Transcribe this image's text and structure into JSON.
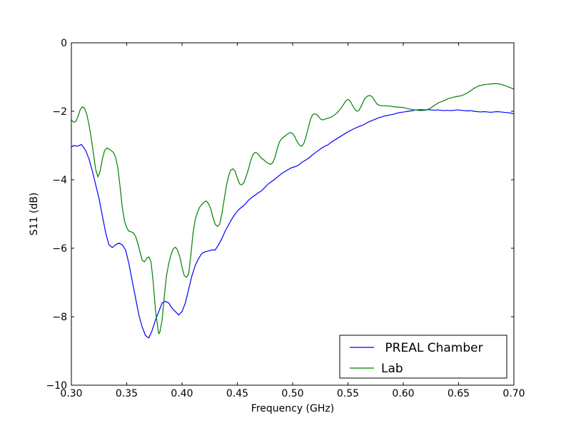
{
  "chart_data": {
    "type": "line",
    "title": "",
    "xlabel": "Frequency (GHz)",
    "ylabel": "S11 (dB)",
    "xlim": [
      0.3,
      0.7
    ],
    "ylim": [
      -10,
      0
    ],
    "xticks": [
      0.3,
      0.35,
      0.4,
      0.45,
      0.5,
      0.55,
      0.6,
      0.65,
      0.7
    ],
    "xtick_labels": [
      "0.30",
      "0.35",
      "0.40",
      "0.45",
      "0.50",
      "0.55",
      "0.60",
      "0.65",
      "0.70"
    ],
    "yticks": [
      0,
      -2,
      -4,
      -6,
      -8,
      -10
    ],
    "ytick_labels": [
      "0",
      "−2",
      "−4",
      "−6",
      "−8",
      "−10"
    ],
    "grid": false,
    "legend_position": "bottom-right",
    "series": [
      {
        "name": " PREAL Chamber",
        "color": "#0000ff",
        "points": [
          [
            0.3,
            -3.05
          ],
          [
            0.302,
            -3.0
          ],
          [
            0.305,
            -3.02
          ],
          [
            0.307,
            -3.0
          ],
          [
            0.309,
            -2.97
          ],
          [
            0.311,
            -3.05
          ],
          [
            0.313,
            -3.15
          ],
          [
            0.316,
            -3.4
          ],
          [
            0.319,
            -3.75
          ],
          [
            0.322,
            -4.15
          ],
          [
            0.325,
            -4.55
          ],
          [
            0.328,
            -5.05
          ],
          [
            0.331,
            -5.55
          ],
          [
            0.334,
            -5.9
          ],
          [
            0.337,
            -5.98
          ],
          [
            0.34,
            -5.9
          ],
          [
            0.343,
            -5.85
          ],
          [
            0.346,
            -5.9
          ],
          [
            0.349,
            -6.05
          ],
          [
            0.352,
            -6.45
          ],
          [
            0.355,
            -6.95
          ],
          [
            0.358,
            -7.45
          ],
          [
            0.361,
            -7.95
          ],
          [
            0.364,
            -8.3
          ],
          [
            0.367,
            -8.55
          ],
          [
            0.37,
            -8.62
          ],
          [
            0.373,
            -8.4
          ],
          [
            0.376,
            -8.1
          ],
          [
            0.379,
            -7.85
          ],
          [
            0.382,
            -7.6
          ],
          [
            0.385,
            -7.55
          ],
          [
            0.388,
            -7.6
          ],
          [
            0.391,
            -7.75
          ],
          [
            0.394,
            -7.85
          ],
          [
            0.397,
            -7.95
          ],
          [
            0.4,
            -7.85
          ],
          [
            0.403,
            -7.6
          ],
          [
            0.406,
            -7.2
          ],
          [
            0.409,
            -6.8
          ],
          [
            0.412,
            -6.5
          ],
          [
            0.415,
            -6.3
          ],
          [
            0.418,
            -6.15
          ],
          [
            0.421,
            -6.1
          ],
          [
            0.424,
            -6.08
          ],
          [
            0.427,
            -6.05
          ],
          [
            0.43,
            -6.05
          ],
          [
            0.433,
            -5.9
          ],
          [
            0.436,
            -5.72
          ],
          [
            0.439,
            -5.5
          ],
          [
            0.442,
            -5.32
          ],
          [
            0.445,
            -5.15
          ],
          [
            0.448,
            -5.0
          ],
          [
            0.451,
            -4.88
          ],
          [
            0.454,
            -4.8
          ],
          [
            0.457,
            -4.72
          ],
          [
            0.46,
            -4.6
          ],
          [
            0.463,
            -4.52
          ],
          [
            0.466,
            -4.45
          ],
          [
            0.469,
            -4.38
          ],
          [
            0.472,
            -4.32
          ],
          [
            0.475,
            -4.22
          ],
          [
            0.478,
            -4.12
          ],
          [
            0.481,
            -4.05
          ],
          [
            0.484,
            -3.98
          ],
          [
            0.487,
            -3.9
          ],
          [
            0.49,
            -3.82
          ],
          [
            0.493,
            -3.76
          ],
          [
            0.496,
            -3.7
          ],
          [
            0.499,
            -3.65
          ],
          [
            0.502,
            -3.62
          ],
          [
            0.505,
            -3.58
          ],
          [
            0.508,
            -3.5
          ],
          [
            0.511,
            -3.44
          ],
          [
            0.514,
            -3.38
          ],
          [
            0.517,
            -3.3
          ],
          [
            0.52,
            -3.22
          ],
          [
            0.523,
            -3.15
          ],
          [
            0.526,
            -3.08
          ],
          [
            0.529,
            -3.02
          ],
          [
            0.532,
            -2.98
          ],
          [
            0.535,
            -2.9
          ],
          [
            0.538,
            -2.84
          ],
          [
            0.541,
            -2.78
          ],
          [
            0.544,
            -2.72
          ],
          [
            0.547,
            -2.66
          ],
          [
            0.55,
            -2.6
          ],
          [
            0.553,
            -2.55
          ],
          [
            0.556,
            -2.5
          ],
          [
            0.559,
            -2.46
          ],
          [
            0.562,
            -2.42
          ],
          [
            0.565,
            -2.38
          ],
          [
            0.568,
            -2.32
          ],
          [
            0.571,
            -2.28
          ],
          [
            0.574,
            -2.24
          ],
          [
            0.577,
            -2.2
          ],
          [
            0.58,
            -2.17
          ],
          [
            0.583,
            -2.14
          ],
          [
            0.586,
            -2.12
          ],
          [
            0.589,
            -2.1
          ],
          [
            0.592,
            -2.08
          ],
          [
            0.595,
            -2.05
          ],
          [
            0.598,
            -2.03
          ],
          [
            0.601,
            -2.02
          ],
          [
            0.604,
            -2.0
          ],
          [
            0.607,
            -1.99
          ],
          [
            0.61,
            -1.97
          ],
          [
            0.613,
            -1.96
          ],
          [
            0.616,
            -1.95
          ],
          [
            0.619,
            -1.96
          ],
          [
            0.622,
            -1.95
          ],
          [
            0.625,
            -1.96
          ],
          [
            0.628,
            -1.97
          ],
          [
            0.631,
            -1.96
          ],
          [
            0.634,
            -1.97
          ],
          [
            0.637,
            -1.98
          ],
          [
            0.64,
            -1.97
          ],
          [
            0.643,
            -1.98
          ],
          [
            0.646,
            -1.97
          ],
          [
            0.649,
            -1.96
          ],
          [
            0.652,
            -1.97
          ],
          [
            0.655,
            -1.98
          ],
          [
            0.658,
            -1.99
          ],
          [
            0.661,
            -1.98
          ],
          [
            0.664,
            -2.0
          ],
          [
            0.667,
            -2.01
          ],
          [
            0.67,
            -2.02
          ],
          [
            0.673,
            -2.01
          ],
          [
            0.676,
            -2.02
          ],
          [
            0.679,
            -2.03
          ],
          [
            0.682,
            -2.02
          ],
          [
            0.685,
            -2.01
          ],
          [
            0.688,
            -2.02
          ],
          [
            0.691,
            -2.03
          ],
          [
            0.694,
            -2.04
          ],
          [
            0.697,
            -2.05
          ],
          [
            0.7,
            -2.08
          ]
        ]
      },
      {
        "name": "Lab",
        "color": "#008000",
        "points": [
          [
            0.3,
            -2.25
          ],
          [
            0.302,
            -2.32
          ],
          [
            0.304,
            -2.3
          ],
          [
            0.306,
            -2.15
          ],
          [
            0.308,
            -1.95
          ],
          [
            0.31,
            -1.87
          ],
          [
            0.312,
            -1.92
          ],
          [
            0.314,
            -2.1
          ],
          [
            0.316,
            -2.4
          ],
          [
            0.318,
            -2.8
          ],
          [
            0.32,
            -3.25
          ],
          [
            0.322,
            -3.7
          ],
          [
            0.324,
            -3.92
          ],
          [
            0.326,
            -3.75
          ],
          [
            0.328,
            -3.4
          ],
          [
            0.33,
            -3.15
          ],
          [
            0.332,
            -3.07
          ],
          [
            0.334,
            -3.1
          ],
          [
            0.336,
            -3.15
          ],
          [
            0.338,
            -3.2
          ],
          [
            0.34,
            -3.35
          ],
          [
            0.342,
            -3.65
          ],
          [
            0.344,
            -4.2
          ],
          [
            0.346,
            -4.8
          ],
          [
            0.348,
            -5.2
          ],
          [
            0.35,
            -5.4
          ],
          [
            0.352,
            -5.5
          ],
          [
            0.354,
            -5.52
          ],
          [
            0.356,
            -5.55
          ],
          [
            0.358,
            -5.65
          ],
          [
            0.36,
            -5.85
          ],
          [
            0.362,
            -6.1
          ],
          [
            0.364,
            -6.35
          ],
          [
            0.366,
            -6.4
          ],
          [
            0.368,
            -6.3
          ],
          [
            0.37,
            -6.25
          ],
          [
            0.372,
            -6.4
          ],
          [
            0.374,
            -7.0
          ],
          [
            0.376,
            -7.8
          ],
          [
            0.378,
            -8.3
          ],
          [
            0.379,
            -8.5
          ],
          [
            0.38,
            -8.45
          ],
          [
            0.382,
            -8.1
          ],
          [
            0.384,
            -7.4
          ],
          [
            0.386,
            -6.8
          ],
          [
            0.388,
            -6.45
          ],
          [
            0.39,
            -6.2
          ],
          [
            0.392,
            -6.02
          ],
          [
            0.394,
            -5.97
          ],
          [
            0.396,
            -6.05
          ],
          [
            0.398,
            -6.25
          ],
          [
            0.4,
            -6.55
          ],
          [
            0.402,
            -6.8
          ],
          [
            0.404,
            -6.85
          ],
          [
            0.406,
            -6.75
          ],
          [
            0.408,
            -6.2
          ],
          [
            0.41,
            -5.55
          ],
          [
            0.412,
            -5.15
          ],
          [
            0.414,
            -4.95
          ],
          [
            0.416,
            -4.8
          ],
          [
            0.418,
            -4.72
          ],
          [
            0.42,
            -4.65
          ],
          [
            0.422,
            -4.62
          ],
          [
            0.424,
            -4.7
          ],
          [
            0.426,
            -4.85
          ],
          [
            0.428,
            -5.1
          ],
          [
            0.43,
            -5.3
          ],
          [
            0.432,
            -5.36
          ],
          [
            0.434,
            -5.3
          ],
          [
            0.436,
            -5.0
          ],
          [
            0.438,
            -4.6
          ],
          [
            0.44,
            -4.2
          ],
          [
            0.442,
            -3.9
          ],
          [
            0.444,
            -3.72
          ],
          [
            0.446,
            -3.68
          ],
          [
            0.448,
            -3.75
          ],
          [
            0.45,
            -3.95
          ],
          [
            0.452,
            -4.12
          ],
          [
            0.454,
            -4.15
          ],
          [
            0.456,
            -4.08
          ],
          [
            0.458,
            -3.9
          ],
          [
            0.46,
            -3.7
          ],
          [
            0.462,
            -3.45
          ],
          [
            0.464,
            -3.27
          ],
          [
            0.466,
            -3.2
          ],
          [
            0.468,
            -3.22
          ],
          [
            0.47,
            -3.3
          ],
          [
            0.472,
            -3.38
          ],
          [
            0.474,
            -3.42
          ],
          [
            0.476,
            -3.48
          ],
          [
            0.478,
            -3.52
          ],
          [
            0.48,
            -3.55
          ],
          [
            0.482,
            -3.5
          ],
          [
            0.484,
            -3.35
          ],
          [
            0.486,
            -3.1
          ],
          [
            0.488,
            -2.9
          ],
          [
            0.49,
            -2.8
          ],
          [
            0.492,
            -2.75
          ],
          [
            0.494,
            -2.7
          ],
          [
            0.496,
            -2.65
          ],
          [
            0.498,
            -2.62
          ],
          [
            0.5,
            -2.65
          ],
          [
            0.502,
            -2.75
          ],
          [
            0.504,
            -2.88
          ],
          [
            0.506,
            -2.98
          ],
          [
            0.508,
            -3.02
          ],
          [
            0.51,
            -2.95
          ],
          [
            0.512,
            -2.75
          ],
          [
            0.514,
            -2.5
          ],
          [
            0.516,
            -2.25
          ],
          [
            0.518,
            -2.1
          ],
          [
            0.52,
            -2.07
          ],
          [
            0.522,
            -2.1
          ],
          [
            0.524,
            -2.18
          ],
          [
            0.526,
            -2.24
          ],
          [
            0.528,
            -2.25
          ],
          [
            0.53,
            -2.22
          ],
          [
            0.532,
            -2.2
          ],
          [
            0.534,
            -2.18
          ],
          [
            0.536,
            -2.15
          ],
          [
            0.538,
            -2.1
          ],
          [
            0.54,
            -2.05
          ],
          [
            0.542,
            -1.98
          ],
          [
            0.544,
            -1.9
          ],
          [
            0.546,
            -1.8
          ],
          [
            0.548,
            -1.7
          ],
          [
            0.55,
            -1.65
          ],
          [
            0.552,
            -1.7
          ],
          [
            0.554,
            -1.82
          ],
          [
            0.556,
            -1.93
          ],
          [
            0.558,
            -2.0
          ],
          [
            0.56,
            -1.97
          ],
          [
            0.562,
            -1.85
          ],
          [
            0.564,
            -1.7
          ],
          [
            0.566,
            -1.6
          ],
          [
            0.568,
            -1.55
          ],
          [
            0.57,
            -1.54
          ],
          [
            0.572,
            -1.58
          ],
          [
            0.574,
            -1.68
          ],
          [
            0.576,
            -1.78
          ],
          [
            0.578,
            -1.82
          ],
          [
            0.58,
            -1.84
          ],
          [
            0.584,
            -1.84
          ],
          [
            0.588,
            -1.85
          ],
          [
            0.592,
            -1.87
          ],
          [
            0.596,
            -1.88
          ],
          [
            0.6,
            -1.89
          ],
          [
            0.604,
            -1.92
          ],
          [
            0.608,
            -1.95
          ],
          [
            0.612,
            -1.97
          ],
          [
            0.616,
            -1.98
          ],
          [
            0.62,
            -1.97
          ],
          [
            0.624,
            -1.92
          ],
          [
            0.628,
            -1.83
          ],
          [
            0.632,
            -1.75
          ],
          [
            0.636,
            -1.7
          ],
          [
            0.64,
            -1.64
          ],
          [
            0.644,
            -1.6
          ],
          [
            0.648,
            -1.57
          ],
          [
            0.652,
            -1.55
          ],
          [
            0.656,
            -1.5
          ],
          [
            0.66,
            -1.42
          ],
          [
            0.664,
            -1.33
          ],
          [
            0.668,
            -1.26
          ],
          [
            0.672,
            -1.23
          ],
          [
            0.676,
            -1.21
          ],
          [
            0.68,
            -1.2
          ],
          [
            0.684,
            -1.19
          ],
          [
            0.688,
            -1.21
          ],
          [
            0.692,
            -1.25
          ],
          [
            0.696,
            -1.3
          ],
          [
            0.7,
            -1.35
          ]
        ]
      }
    ]
  }
}
